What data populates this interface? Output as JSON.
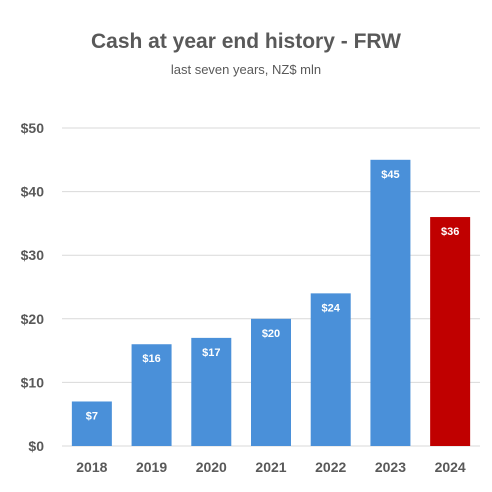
{
  "chart_data": {
    "type": "bar",
    "title": "Cash at year end history - FRW",
    "subtitle": "last seven years, NZ$ mln",
    "categories": [
      "2018",
      "2019",
      "2020",
      "2021",
      "2022",
      "2023",
      "2024"
    ],
    "values": [
      7,
      16,
      17,
      20,
      24,
      45,
      36
    ],
    "data_labels": [
      "$7",
      "$16",
      "$17",
      "$20",
      "$24",
      "$45",
      "$36"
    ],
    "bar_colors": [
      "#4A90D9",
      "#4A90D9",
      "#4A90D9",
      "#4A90D9",
      "#4A90D9",
      "#4A90D9",
      "#C00000"
    ],
    "ylim": [
      0,
      50
    ],
    "yticks": [
      0,
      10,
      20,
      30,
      40,
      50
    ],
    "ytick_labels": [
      "$0",
      "$10",
      "$20",
      "$30",
      "$40",
      "$50"
    ],
    "xlabel": "",
    "ylabel": "",
    "grid": true,
    "legend": "none"
  }
}
